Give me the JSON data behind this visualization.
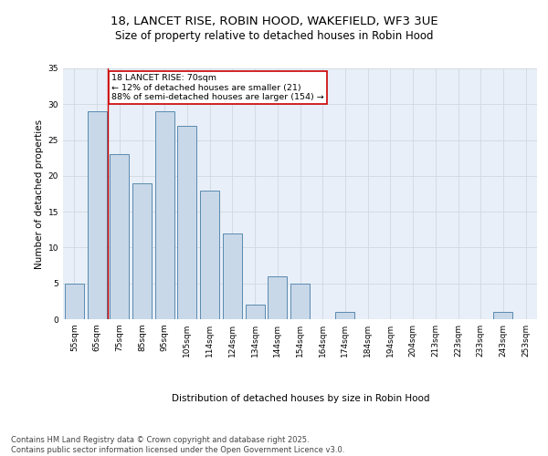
{
  "title1": "18, LANCET RISE, ROBIN HOOD, WAKEFIELD, WF3 3UE",
  "title2": "Size of property relative to detached houses in Robin Hood",
  "xlabel": "Distribution of detached houses by size in Robin Hood",
  "ylabel": "Number of detached properties",
  "categories": [
    "55sqm",
    "65sqm",
    "75sqm",
    "85sqm",
    "95sqm",
    "105sqm",
    "114sqm",
    "124sqm",
    "134sqm",
    "144sqm",
    "154sqm",
    "164sqm",
    "174sqm",
    "184sqm",
    "194sqm",
    "204sqm",
    "213sqm",
    "223sqm",
    "233sqm",
    "243sqm",
    "253sqm"
  ],
  "values": [
    5,
    29,
    23,
    19,
    29,
    27,
    18,
    12,
    2,
    6,
    5,
    0,
    1,
    0,
    0,
    0,
    0,
    0,
    0,
    1,
    0
  ],
  "bar_color": "#c8d8e8",
  "bar_edge_color": "#5a8ab0",
  "grid_color": "#d0d8e0",
  "background_color": "#e8eff8",
  "vline_x": 1.5,
  "vline_color": "#cc0000",
  "annotation_text": "18 LANCET RISE: 70sqm\n← 12% of detached houses are smaller (21)\n88% of semi-detached houses are larger (154) →",
  "annotation_box_color": "#cc0000",
  "footer_text": "Contains HM Land Registry data © Crown copyright and database right 2025.\nContains public sector information licensed under the Open Government Licence v3.0.",
  "ylim": [
    0,
    35
  ],
  "yticks": [
    0,
    5,
    10,
    15,
    20,
    25,
    30,
    35
  ],
  "title_fontsize": 9.5,
  "subtitle_fontsize": 8.5,
  "axis_label_fontsize": 7.5,
  "tick_fontsize": 6.5,
  "annotation_fontsize": 6.8,
  "footer_fontsize": 6.0
}
